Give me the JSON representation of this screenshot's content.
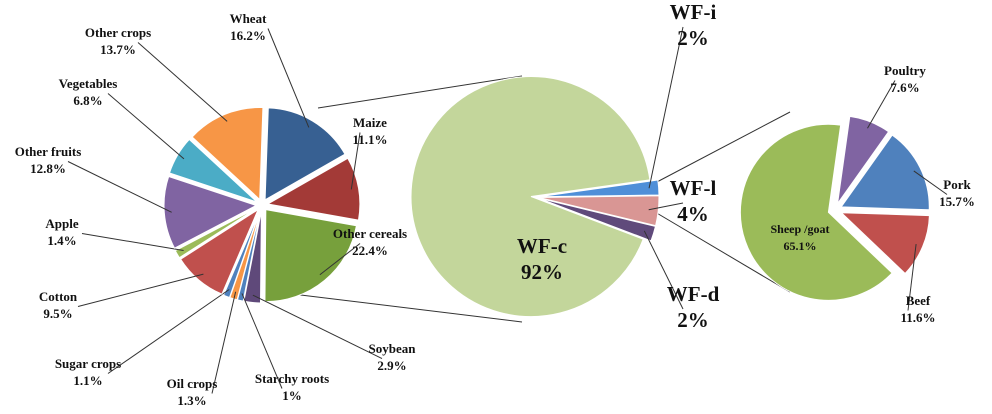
{
  "chart_data": [
    {
      "type": "pie",
      "categories": [
        "Wheat",
        "Maize",
        "Other cereals",
        "Soybean",
        "Starchy roots",
        "Oil crops",
        "Sugar crops",
        "Cotton",
        "Apple",
        "Other fruits",
        "Vegetables",
        "Other crops"
      ],
      "values": [
        16.2,
        11.1,
        22.4,
        2.9,
        1,
        1.3,
        1.1,
        9.5,
        1.4,
        12.8,
        6.8,
        13.7
      ],
      "value_labels": [
        "16.2%",
        "11.1%",
        "22.4%",
        "2.9%",
        "1%",
        "1.3%",
        "1.1%",
        "9.5%",
        "1.4%",
        "12.8%",
        "6.8%",
        "13.7%"
      ],
      "colors": [
        "#376092",
        "#a33a37",
        "#77a03c",
        "#5f497a",
        "#4f81bd",
        "#f79646",
        "#4f81bd",
        "#c0504d",
        "#9bbb59",
        "#8064a2",
        "#4bacc6",
        "#f79646"
      ]
    },
    {
      "type": "pie",
      "categories": [
        "WF-i",
        "WF-l",
        "WF-d",
        "WF-c"
      ],
      "values": [
        2,
        4,
        2,
        92
      ],
      "value_labels": [
        "2%",
        "4%",
        "2%",
        "92%"
      ],
      "colors": [
        "#4f8fd8",
        "#d99694",
        "#604a7b",
        "#c3d69b"
      ]
    },
    {
      "type": "pie",
      "categories": [
        "Poultry",
        "Pork",
        "Beef",
        "Sheep /goat"
      ],
      "values": [
        7.6,
        15.7,
        11.6,
        65.1
      ],
      "value_labels": [
        "7.6%",
        "15.7%",
        "11.6%",
        "65.1%"
      ],
      "colors": [
        "#8064a2",
        "#4f81bd",
        "#c0504d",
        "#9bbb59"
      ]
    }
  ]
}
